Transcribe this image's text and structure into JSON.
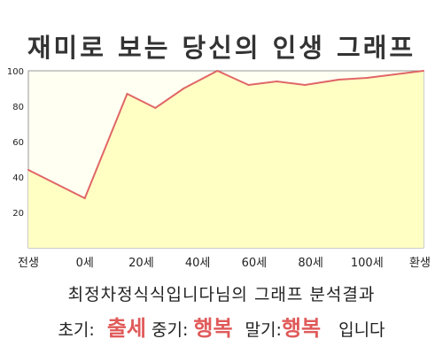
{
  "title": "재미로 보는 당신의 인생 그래프",
  "chart_data": {
    "type": "area",
    "title": "재미로 보는 당신의 인생 그래프",
    "xlabel": "",
    "ylabel": "",
    "x_ticks": [
      "전생",
      "0세",
      "20세",
      "40세",
      "60세",
      "80세",
      "100세",
      "환생"
    ],
    "y_ticks": [
      20,
      40,
      60,
      80,
      100
    ],
    "ylim": [
      0,
      100
    ],
    "grid": false,
    "legend": "none",
    "colors": {
      "line": "#e06666",
      "fill": "#ffffc4",
      "frame": "#999999"
    },
    "x": [
      -20,
      0,
      15,
      25,
      35,
      47,
      58,
      68,
      78,
      90,
      100,
      120
    ],
    "values": [
      44,
      28,
      87,
      79,
      90,
      100,
      92,
      94,
      92,
      95,
      96,
      100
    ]
  },
  "summary": {
    "text": "최정차정식식입니다님의 그래프 분석결과",
    "early_label": "초기:",
    "early_value": "출세",
    "mid_label": "중기:",
    "mid_value": "행복",
    "late_label": "말기:",
    "late_value": "행복",
    "suffix": "입니다"
  }
}
